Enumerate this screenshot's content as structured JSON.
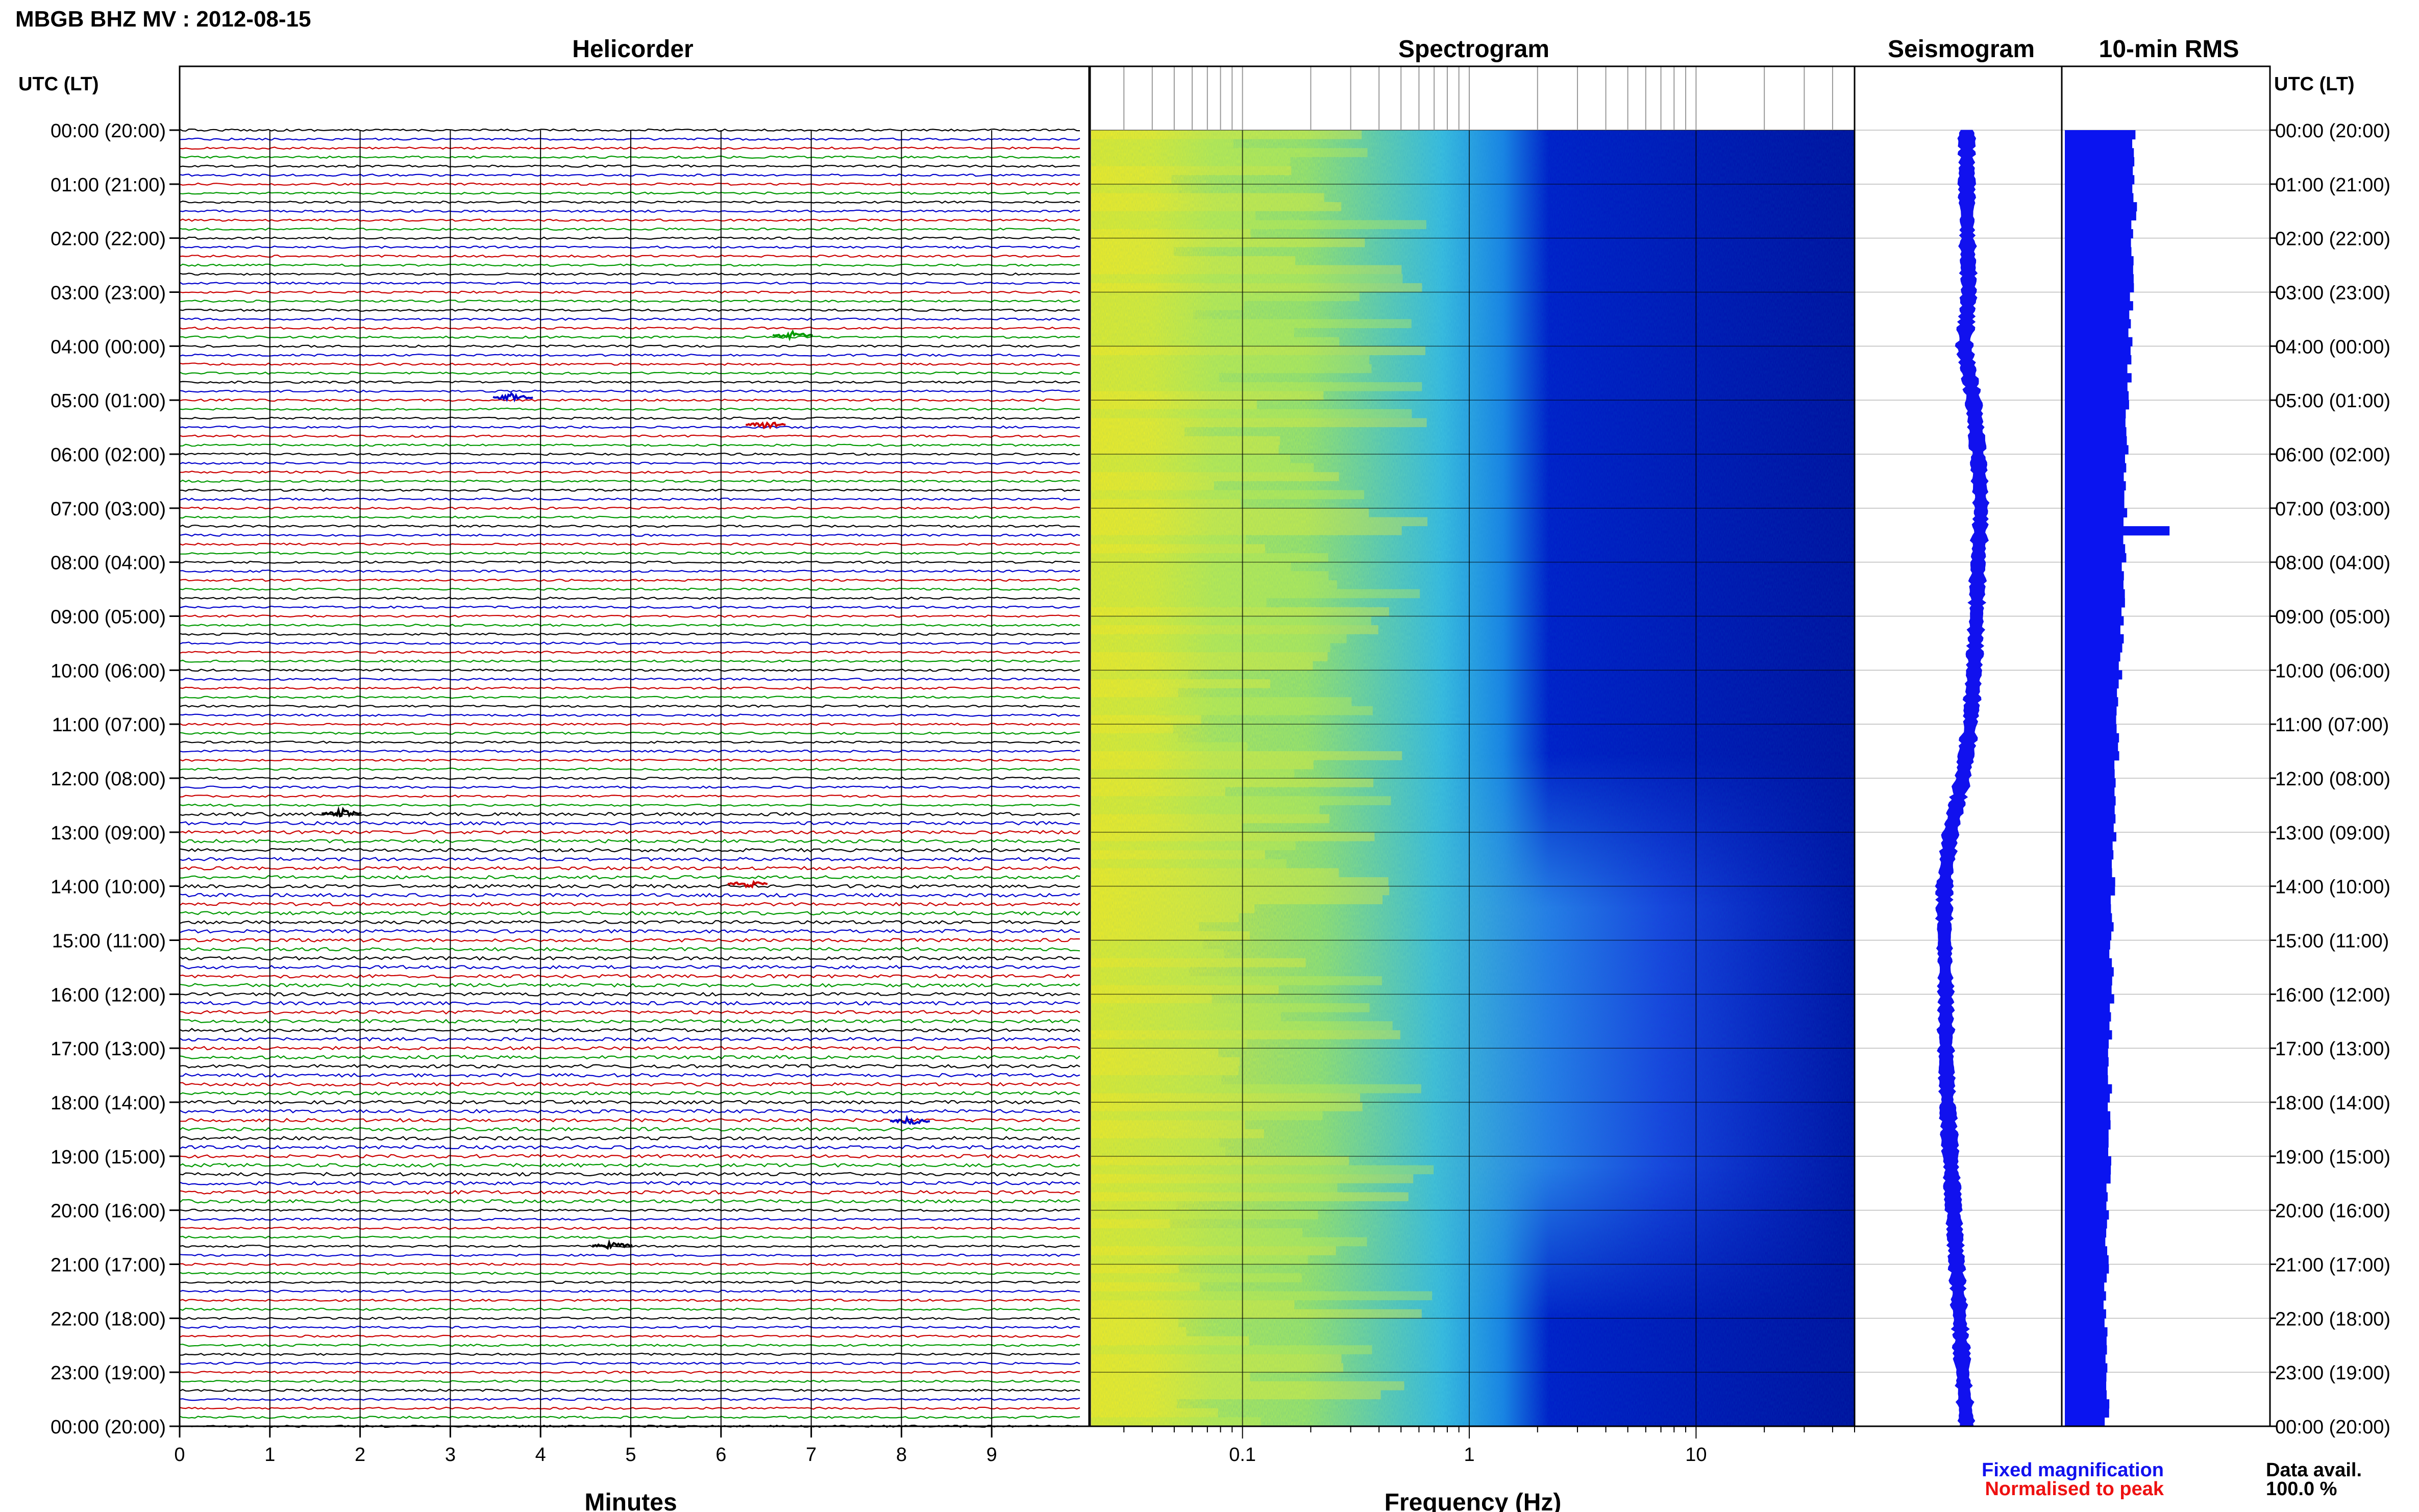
{
  "figure": {
    "title": "MBGB BHZ MV : 2012-08-15",
    "data_avail_label": "Data avail.",
    "data_avail_value": "100.0 %",
    "legend": {
      "fixed_label": "Fixed magnification",
      "fixed_color": "#1111ee",
      "normalised_label": "Normalised to peak",
      "normalised_color": "#ee1111"
    },
    "time_axis_label": "UTC (LT)",
    "time_labels": [
      "00:00 (20:00)",
      "01:00 (21:00)",
      "02:00 (22:00)",
      "03:00 (23:00)",
      "04:00 (00:00)",
      "05:00 (01:00)",
      "06:00 (02:00)",
      "07:00 (03:00)",
      "08:00 (04:00)",
      "09:00 (05:00)",
      "10:00 (06:00)",
      "11:00 (07:00)",
      "12:00 (08:00)",
      "13:00 (09:00)",
      "14:00 (10:00)",
      "15:00 (11:00)",
      "16:00 (12:00)",
      "17:00 (13:00)",
      "18:00 (14:00)",
      "19:00 (15:00)",
      "20:00 (16:00)",
      "21:00 (17:00)",
      "22:00 (18:00)",
      "23:00 (19:00)",
      "00:00 (20:00)"
    ]
  },
  "chart_data": [
    {
      "type": "line",
      "title": "Helicorder",
      "xlabel": "Minutes",
      "ylabel": "UTC (LT)",
      "x_ticks": [
        0,
        1,
        2,
        3,
        4,
        5,
        6,
        7,
        8,
        9
      ],
      "xlim": [
        0,
        10
      ],
      "trace_minutes": 10,
      "traces_per_hour": 6,
      "trace_colors": [
        "#000000",
        "#0000cc",
        "#cc0000",
        "#009900"
      ],
      "events": [
        {
          "hour": 3.8,
          "minute": 6.8,
          "color": "#009900"
        },
        {
          "hour": 4.95,
          "minute": 3.7,
          "color": "#0000cc"
        },
        {
          "hour": 5.45,
          "minute": 6.5,
          "color": "#cc0000"
        },
        {
          "hour": 12.65,
          "minute": 1.8,
          "color": "#000000"
        },
        {
          "hour": 13.95,
          "minute": 6.3,
          "color": "#cc0000"
        },
        {
          "hour": 18.35,
          "minute": 8.1,
          "color": "#0000cc"
        },
        {
          "hour": 20.65,
          "minute": 4.8,
          "color": "#000000"
        }
      ],
      "grid": true
    },
    {
      "type": "heatmap",
      "title": "Spectrogram",
      "xlabel": "Frequency (Hz)",
      "x_scale": "log",
      "xlim": [
        0.0215,
        50
      ],
      "x_tick_labels": [
        {
          "value": 0.1,
          "label": "0.1"
        },
        {
          "value": 1,
          "label": "1"
        },
        {
          "value": 10,
          "label": "10"
        }
      ],
      "ylim_hours": [
        0,
        24
      ],
      "colormap": "jet",
      "grid": true
    },
    {
      "type": "line",
      "title": "Seismogram",
      "color": "#1111ee",
      "hours": [
        0,
        1,
        2,
        3,
        4,
        5,
        6,
        7,
        8,
        9,
        10,
        11,
        12,
        13,
        14,
        15,
        16,
        17,
        18,
        19,
        20,
        21,
        22,
        23,
        24
      ],
      "offset": [
        0.18,
        0.18,
        0.2,
        0.25,
        0.1,
        0.4,
        0.55,
        0.65,
        0.55,
        0.5,
        0.42,
        0.3,
        0.05,
        -0.35,
        -0.55,
        -0.55,
        -0.5,
        -0.5,
        -0.45,
        -0.35,
        -0.25,
        -0.15,
        -0.05,
        0.05,
        0.18
      ],
      "grid": true
    },
    {
      "type": "bar",
      "title": "10-min RMS",
      "color": "#0a14f0",
      "base_rms": [
        1.0,
        1.02,
        1.0,
        0.97,
        0.95,
        0.92,
        0.9,
        0.88,
        0.85,
        0.83,
        0.8,
        0.78,
        0.75,
        0.72,
        0.7,
        0.68,
        0.68,
        0.66,
        0.66,
        0.64,
        0.62,
        0.6,
        0.6,
        0.6,
        0.62
      ],
      "spike": {
        "hour": 7.4,
        "value": 1.52
      },
      "grid": true
    }
  ]
}
